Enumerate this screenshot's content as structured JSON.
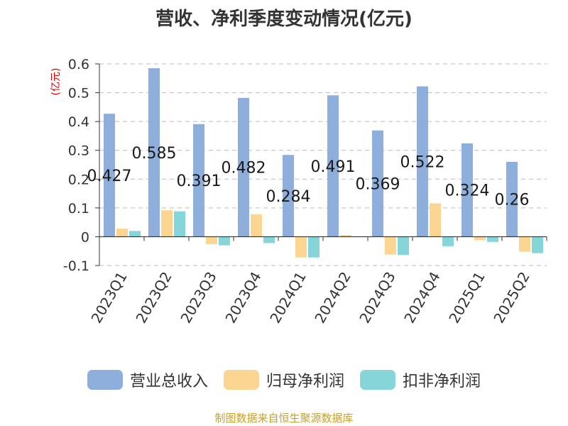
{
  "chart_data": {
    "type": "bar",
    "title": "营收、净利季度变动情况(亿元)",
    "ylabel": "(亿元)",
    "ylim": [
      -0.1,
      0.6
    ],
    "yticks": [
      -0.1,
      0,
      0.1,
      0.2,
      0.3,
      0.4,
      0.5,
      0.6
    ],
    "ytick_labels": [
      "-0.1",
      "0",
      "0.1",
      "0.2",
      "0.3",
      "0.4",
      "0.5",
      "0.6"
    ],
    "grid": true,
    "legend_position": "bottom",
    "categories": [
      "2023Q1",
      "2023Q2",
      "2023Q3",
      "2023Q4",
      "2024Q1",
      "2024Q2",
      "2024Q3",
      "2024Q4",
      "2025Q1",
      "2025Q2"
    ],
    "series": [
      {
        "name": "营业总收入",
        "color": "#8eaedb",
        "values": [
          0.427,
          0.585,
          0.391,
          0.482,
          0.284,
          0.491,
          0.369,
          0.522,
          0.324,
          0.26
        ]
      },
      {
        "name": "归母净利润",
        "color": "#fdd593",
        "values": [
          0.028,
          0.092,
          -0.026,
          0.078,
          -0.072,
          0.006,
          -0.062,
          0.116,
          -0.012,
          -0.052
        ]
      },
      {
        "name": "扣非净利润",
        "color": "#86d5d8",
        "values": [
          0.02,
          0.088,
          -0.03,
          -0.022,
          -0.072,
          0.0,
          -0.063,
          -0.033,
          -0.018,
          -0.057
        ]
      }
    ],
    "data_labels": [
      "0.427",
      "0.585",
      "0.391",
      "0.482",
      "0.284",
      "0.491",
      "0.369",
      "0.522",
      "0.324",
      "0.26"
    ]
  },
  "source_text": "制图数据来自恒生聚源数据库"
}
